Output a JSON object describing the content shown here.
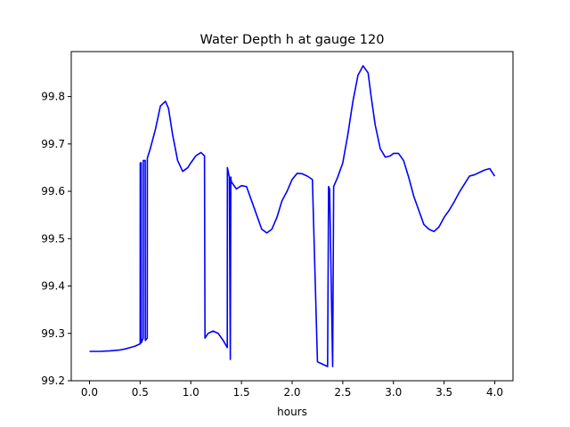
{
  "chart_data": {
    "type": "line",
    "title": "Water Depth h at gauge 120",
    "xlabel": "hours",
    "ylabel": "",
    "xlim": [
      -0.18,
      4.18
    ],
    "ylim": [
      99.2,
      99.895
    ],
    "xticks": [
      0.0,
      0.5,
      1.0,
      1.5,
      2.0,
      2.5,
      3.0,
      3.5,
      4.0
    ],
    "xtick_labels": [
      "0.0",
      "0.5",
      "1.0",
      "1.5",
      "2.0",
      "2.5",
      "3.0",
      "3.5",
      "4.0"
    ],
    "yticks": [
      99.2,
      99.3,
      99.4,
      99.5,
      99.6,
      99.7,
      99.8
    ],
    "ytick_labels": [
      "99.2",
      "99.3",
      "99.4",
      "99.5",
      "99.6",
      "99.7",
      "99.8"
    ],
    "grid": false,
    "line_color": "#0000ff",
    "series": [
      {
        "x": [
          0.0,
          0.1,
          0.2,
          0.3,
          0.35,
          0.4,
          0.45,
          0.5,
          0.501,
          0.51,
          0.511,
          0.53,
          0.531,
          0.55,
          0.551,
          0.57,
          0.571,
          0.6,
          0.65,
          0.7,
          0.75,
          0.78,
          0.82,
          0.87,
          0.92,
          0.97,
          1.0,
          1.05,
          1.1,
          1.135,
          1.14,
          1.17,
          1.22,
          1.27,
          1.32,
          1.36,
          1.361,
          1.38,
          1.39,
          1.395,
          1.4,
          1.45,
          1.5,
          1.55,
          1.6,
          1.65,
          1.7,
          1.75,
          1.8,
          1.85,
          1.9,
          1.95,
          2.0,
          2.05,
          2.1,
          2.15,
          2.2,
          2.25,
          2.3,
          2.35,
          2.36,
          2.37,
          2.4,
          2.41,
          2.42,
          2.45,
          2.5,
          2.55,
          2.6,
          2.65,
          2.7,
          2.75,
          2.78,
          2.82,
          2.87,
          2.92,
          2.97,
          3.0,
          3.05,
          3.1,
          3.15,
          3.2,
          3.25,
          3.3,
          3.35,
          3.4,
          3.45,
          3.5,
          3.55,
          3.6,
          3.65,
          3.7,
          3.75,
          3.8,
          3.85,
          3.9,
          3.95,
          4.0
        ],
        "y": [
          99.262,
          99.262,
          99.263,
          99.265,
          99.267,
          99.27,
          99.273,
          99.278,
          99.66,
          99.66,
          99.28,
          99.29,
          99.665,
          99.665,
          99.285,
          99.29,
          99.67,
          99.69,
          99.73,
          99.78,
          99.79,
          99.775,
          99.72,
          99.665,
          99.642,
          99.65,
          99.66,
          99.675,
          99.682,
          99.675,
          99.29,
          99.3,
          99.305,
          99.3,
          99.285,
          99.27,
          99.65,
          99.63,
          99.245,
          99.63,
          99.62,
          99.605,
          99.612,
          99.61,
          99.58,
          99.55,
          99.52,
          99.512,
          99.52,
          99.545,
          99.58,
          99.6,
          99.625,
          99.638,
          99.637,
          99.632,
          99.625,
          99.24,
          99.235,
          99.23,
          99.61,
          99.605,
          99.23,
          99.61,
          99.615,
          99.63,
          99.66,
          99.72,
          99.79,
          99.845,
          99.865,
          99.85,
          99.8,
          99.74,
          99.69,
          99.672,
          99.675,
          99.68,
          99.68,
          99.665,
          99.63,
          99.59,
          99.56,
          99.53,
          99.52,
          99.515,
          99.525,
          99.545,
          99.56,
          99.578,
          99.598,
          99.615,
          99.632,
          99.635,
          99.64,
          99.645,
          99.648,
          99.632
        ]
      }
    ]
  }
}
